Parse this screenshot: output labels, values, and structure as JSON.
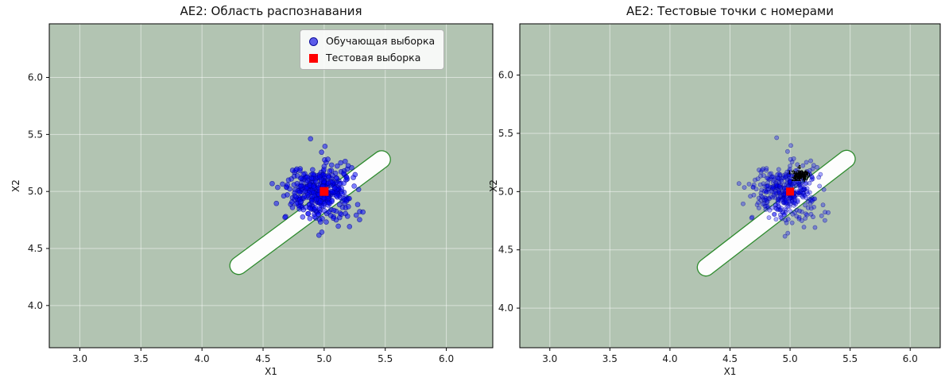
{
  "chart_data": [
    {
      "type": "scatter",
      "title": "AE2: Область распознавания",
      "xlabel": "X1",
      "ylabel": "X2",
      "xlim": [
        2.75,
        6.38
      ],
      "ylim": [
        3.63,
        6.47
      ],
      "xticks": [
        3.0,
        3.5,
        4.0,
        4.5,
        5.0,
        5.5,
        6.0
      ],
      "yticks": [
        4.0,
        4.5,
        5.0,
        5.5,
        6.0
      ],
      "grid": true,
      "background_fill": "#b2c4b2",
      "grid_color": "rgba(255,255,255,0.5)",
      "recognition_region": {
        "shape": "stadium",
        "from": [
          4.3,
          4.35
        ],
        "to": [
          5.47,
          5.28
        ],
        "half_width": 0.068,
        "fill": "#fdfdfd",
        "edge_color": "#2e8b2e"
      },
      "series": [
        {
          "name": "Обучающая выборка",
          "marker": "circle",
          "color": "#0000ff",
          "edge_color": "#00008b",
          "alpha": 0.5,
          "size": 3,
          "cluster": {
            "n": 400,
            "center": [
              4.96,
              5.0
            ],
            "std": [
              0.13,
              0.13
            ],
            "seed": 42
          }
        },
        {
          "name": "Тестовая выборка",
          "marker": "square",
          "color": "#ff0000",
          "size": 11,
          "points": [
            [
              5.0,
              5.0
            ]
          ]
        }
      ],
      "legend_visible": true
    },
    {
      "type": "scatter",
      "title": "AE2: Тестовые точки с номерами",
      "xlabel": "X1",
      "ylabel": "X2",
      "xlim": [
        2.75,
        6.25
      ],
      "ylim": [
        3.66,
        6.44
      ],
      "xticks": [
        3.0,
        3.5,
        4.0,
        4.5,
        5.0,
        5.5,
        6.0
      ],
      "yticks": [
        4.0,
        4.5,
        5.0,
        5.5,
        6.0
      ],
      "grid": true,
      "background_fill": "#b2c4b2",
      "grid_color": "rgba(255,255,255,0.5)",
      "recognition_region": {
        "shape": "stadium",
        "from": [
          4.3,
          4.35
        ],
        "to": [
          5.47,
          5.28
        ],
        "half_width": 0.068,
        "fill": "#fdfdfd",
        "edge_color": "#2e8b2e"
      },
      "series": [
        {
          "name": "Обучающая выборка",
          "marker": "circle",
          "color": "#0000ff",
          "edge_color": "#00008b",
          "alpha": 0.33,
          "size": 2.6,
          "cluster": {
            "n": 400,
            "center": [
              4.96,
              5.0
            ],
            "std": [
              0.13,
              0.13
            ],
            "seed": 42
          }
        },
        {
          "name": "Тестовая выборка",
          "marker": "square",
          "color": "#ff0000",
          "size": 10,
          "points": [
            [
              5.0,
              5.0
            ]
          ]
        }
      ],
      "test_numbers": {
        "n": 30,
        "start": 1,
        "center": [
          5.09,
          5.11
        ],
        "spread": 0.028,
        "seed": 7,
        "color": "#000000"
      },
      "legend_visible": false
    }
  ]
}
